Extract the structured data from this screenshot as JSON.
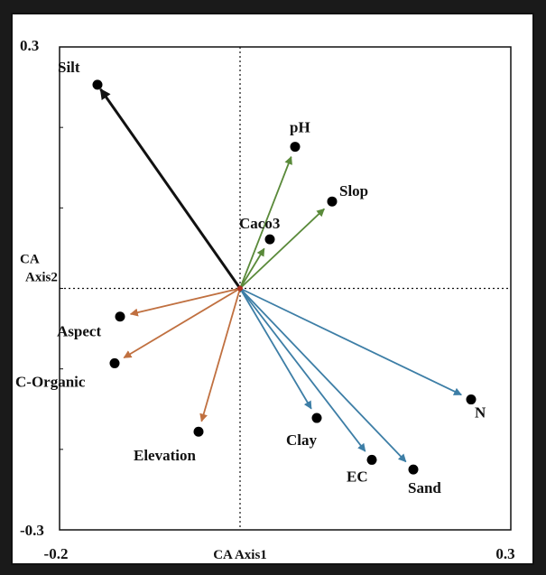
{
  "chart_data": {
    "type": "scatter",
    "title": "",
    "xlabel": "CA Axis1",
    "ylabel": "CA\nAxis2",
    "xlim": [
      -0.2,
      0.3
    ],
    "ylim": [
      -0.3,
      0.3
    ],
    "x_tick_labels": [
      "-0.2",
      "0.3"
    ],
    "y_tick_labels": [
      "0.3",
      "-0.3"
    ],
    "origin": [
      0,
      0
    ],
    "colors": {
      "silt": "#111111",
      "green": "#5a8a3a",
      "orange": "#c07040",
      "blue": "#3d7ea6",
      "point": "#000000"
    },
    "vectors": [
      {
        "name": "Silt",
        "x": -0.158,
        "y": 0.253,
        "group": "silt"
      },
      {
        "name": "pH",
        "x": 0.061,
        "y": 0.176,
        "group": "green"
      },
      {
        "name": "Slop",
        "x": 0.102,
        "y": 0.108,
        "group": "green"
      },
      {
        "name": "Caco3",
        "x": 0.033,
        "y": 0.061,
        "group": "green"
      },
      {
        "name": "Aspect",
        "x": -0.133,
        "y": -0.035,
        "group": "orange"
      },
      {
        "name": "C-Organic",
        "x": -0.139,
        "y": -0.093,
        "group": "orange"
      },
      {
        "name": "Elevation",
        "x": -0.046,
        "y": -0.178,
        "group": "orange"
      },
      {
        "name": "N",
        "x": 0.256,
        "y": -0.138,
        "group": "blue"
      },
      {
        "name": "Clay",
        "x": 0.085,
        "y": -0.161,
        "group": "blue"
      },
      {
        "name": "EC",
        "x": 0.146,
        "y": -0.213,
        "group": "blue"
      },
      {
        "name": "Sand",
        "x": 0.192,
        "y": -0.225,
        "group": "blue"
      }
    ]
  }
}
